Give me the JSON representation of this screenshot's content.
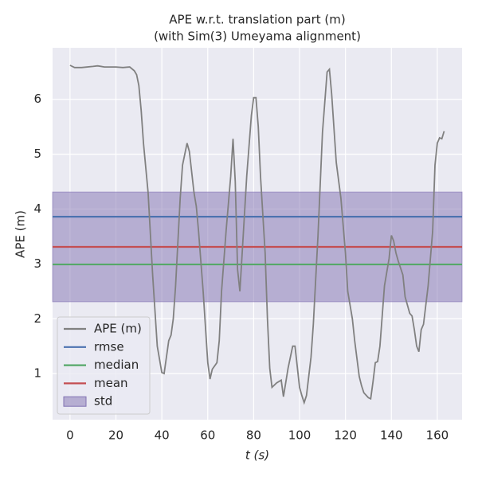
{
  "chart_data": {
    "type": "line",
    "title": "APE w.r.t. translation part (m)",
    "subtitle": "(with Sim(3) Umeyama alignment)",
    "x_label": "t (s)",
    "y_label": "APE (m)",
    "x": [
      0,
      2,
      5,
      10,
      12,
      15,
      20,
      23,
      26,
      28,
      29,
      30,
      31,
      32,
      34,
      36,
      38,
      40,
      41,
      42,
      43,
      44,
      45,
      46,
      48,
      49,
      51,
      52,
      54,
      55,
      56,
      58,
      60,
      61,
      62,
      64,
      65,
      66,
      68,
      70,
      71,
      72,
      73,
      74,
      75,
      77,
      79,
      80,
      81,
      82,
      83,
      85,
      86,
      87,
      88,
      90,
      92,
      93,
      95,
      97,
      98,
      100,
      101,
      102,
      103,
      105,
      106,
      108,
      110,
      112,
      113,
      114,
      116,
      118,
      120,
      121,
      123,
      124,
      126,
      127,
      128,
      130,
      131,
      132,
      133,
      134,
      135,
      137,
      139,
      140,
      141,
      142,
      143,
      145,
      146,
      148,
      149,
      150,
      151,
      152,
      153,
      154,
      156,
      158,
      159,
      160,
      161,
      162,
      163
    ],
    "series": [
      {
        "name": "APE (m)",
        "color": "#808080",
        "values": [
          6.62,
          6.58,
          6.58,
          6.6,
          6.61,
          6.59,
          6.59,
          6.58,
          6.59,
          6.52,
          6.45,
          6.25,
          5.8,
          5.2,
          4.3,
          2.8,
          1.5,
          1.02,
          1.0,
          1.3,
          1.6,
          1.7,
          2.0,
          2.6,
          4.2,
          4.8,
          5.2,
          5.05,
          4.3,
          4.05,
          3.6,
          2.5,
          1.2,
          0.9,
          1.08,
          1.2,
          1.6,
          2.5,
          3.6,
          4.6,
          5.28,
          4.5,
          2.9,
          2.5,
          3.2,
          4.6,
          5.7,
          6.03,
          6.03,
          5.5,
          4.6,
          3.2,
          2.0,
          1.1,
          0.75,
          0.83,
          0.88,
          0.58,
          1.1,
          1.5,
          1.5,
          0.75,
          0.6,
          0.47,
          0.6,
          1.3,
          1.9,
          3.5,
          5.4,
          6.5,
          6.55,
          6.1,
          4.85,
          4.2,
          3.2,
          2.5,
          2.0,
          1.6,
          0.95,
          0.78,
          0.65,
          0.56,
          0.54,
          0.85,
          1.2,
          1.22,
          1.5,
          2.6,
          3.1,
          3.52,
          3.42,
          3.2,
          3.05,
          2.8,
          2.4,
          2.1,
          2.05,
          1.8,
          1.5,
          1.4,
          1.8,
          1.9,
          2.6,
          3.6,
          4.8,
          5.2,
          5.3,
          5.28,
          5.42
        ]
      }
    ],
    "hlines": [
      {
        "name": "rmse",
        "color": "#4c72b0",
        "value": 3.86
      },
      {
        "name": "median",
        "color": "#55a868",
        "value": 2.99
      },
      {
        "name": "mean",
        "color": "#c44e52",
        "value": 3.31
      }
    ],
    "band": {
      "name": "std",
      "color": "#8172b2",
      "values": [
        2.31,
        4.31
      ]
    },
    "xlim": [
      -7.6,
      170.8
    ],
    "ylim": [
      0.16,
      6.94
    ],
    "xticks": [
      0,
      20,
      40,
      60,
      80,
      100,
      120,
      140,
      160
    ],
    "yticks": [
      1,
      2,
      3,
      4,
      5,
      6
    ],
    "grid": true,
    "legend": "lower left"
  }
}
